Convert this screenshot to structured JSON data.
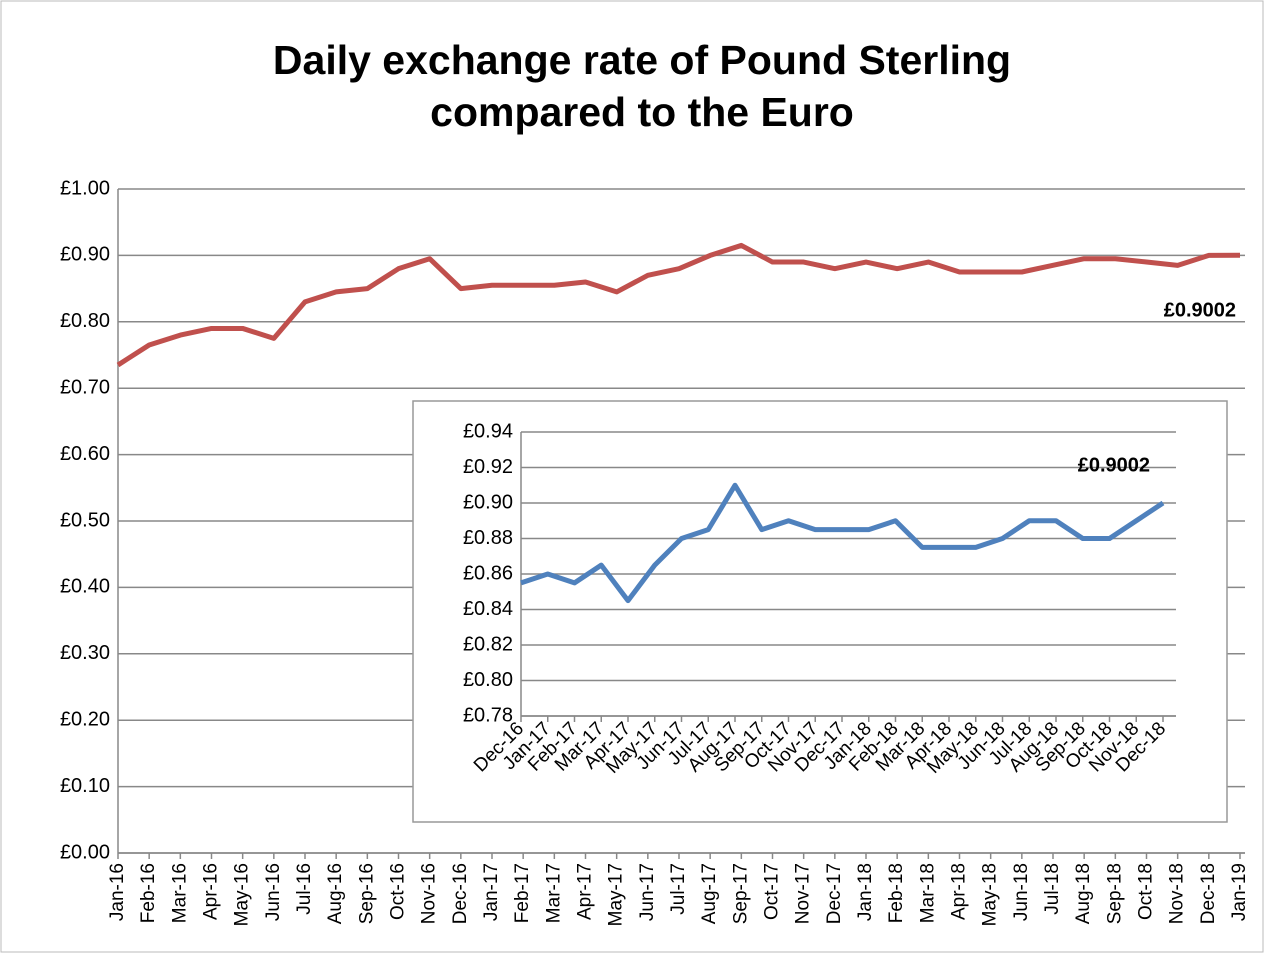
{
  "chart_data": [
    {
      "type": "line",
      "title": "Daily exchange rate of Pound Sterling compared to the Euro",
      "categories": [
        "Jan-16",
        "Feb-16",
        "Mar-16",
        "Apr-16",
        "May-16",
        "Jun-16",
        "Jul-16",
        "Aug-16",
        "Sep-16",
        "Oct-16",
        "Nov-16",
        "Dec-16",
        "Jan-17",
        "Feb-17",
        "Mar-17",
        "Apr-17",
        "May-17",
        "Jun-17",
        "Jul-17",
        "Aug-17",
        "Sep-17",
        "Oct-17",
        "Nov-17",
        "Dec-17",
        "Jan-18",
        "Feb-18",
        "Mar-18",
        "Apr-18",
        "May-18",
        "Jun-18",
        "Jul-18",
        "Aug-18",
        "Sep-18",
        "Oct-18",
        "Nov-18",
        "Dec-18",
        "Jan-19"
      ],
      "series": [
        {
          "color": "#c0504d",
          "values": [
            0.735,
            0.765,
            0.78,
            0.79,
            0.79,
            0.775,
            0.83,
            0.845,
            0.85,
            0.88,
            0.895,
            0.85,
            0.855,
            0.855,
            0.855,
            0.86,
            0.845,
            0.87,
            0.88,
            0.9,
            0.915,
            0.89,
            0.89,
            0.88,
            0.89,
            0.88,
            0.89,
            0.875,
            0.875,
            0.875,
            0.885,
            0.895,
            0.895,
            0.89,
            0.885,
            0.9,
            0.9002
          ]
        }
      ],
      "annotation": "£0.9002",
      "ylim": [
        0,
        1
      ],
      "yticks": [
        {
          "value": 0,
          "label": "£0.00"
        },
        {
          "value": 0.1,
          "label": "£0.10"
        },
        {
          "value": 0.2,
          "label": "£0.20"
        },
        {
          "value": 0.3,
          "label": "£0.30"
        },
        {
          "value": 0.4,
          "label": "£0.40"
        },
        {
          "value": 0.5,
          "label": "£0.50"
        },
        {
          "value": 0.6,
          "label": "£0.60"
        },
        {
          "value": 0.7,
          "label": "£0.70"
        },
        {
          "value": 0.8,
          "label": "£0.80"
        },
        {
          "value": 0.9,
          "label": "£0.90"
        },
        {
          "value": 1,
          "label": "£1.00"
        }
      ],
      "grid": true
    },
    {
      "type": "line",
      "categories": [
        "Dec-16",
        "Jan-17",
        "Feb-17",
        "Mar-17",
        "Apr-17",
        "May-17",
        "Jun-17",
        "Jul-17",
        "Aug-17",
        "Sep-17",
        "Oct-17",
        "Nov-17",
        "Dec-17",
        "Jan-18",
        "Feb-18",
        "Mar-18",
        "Apr-18",
        "May-18",
        "Jun-18",
        "Jul-18",
        "Aug-18",
        "Sep-18",
        "Oct-18",
        "Nov-18",
        "Dec-18"
      ],
      "series": [
        {
          "color": "#4f81bd",
          "values": [
            0.855,
            0.86,
            0.855,
            0.865,
            0.845,
            0.865,
            0.88,
            0.885,
            0.91,
            0.885,
            0.89,
            0.885,
            0.885,
            0.885,
            0.89,
            0.875,
            0.875,
            0.875,
            0.88,
            0.89,
            0.89,
            0.88,
            0.88,
            0.89,
            0.9
          ]
        }
      ],
      "annotation": "£0.9002",
      "ylim": [
        0.78,
        0.94
      ],
      "yticks": [
        {
          "value": 0.78,
          "label": "£0.78"
        },
        {
          "value": 0.8,
          "label": "£0.80"
        },
        {
          "value": 0.82,
          "label": "£0.82"
        },
        {
          "value": 0.84,
          "label": "£0.84"
        },
        {
          "value": 0.86,
          "label": "£0.86"
        },
        {
          "value": 0.88,
          "label": "£0.88"
        },
        {
          "value": 0.9,
          "label": "£0.90"
        },
        {
          "value": 0.92,
          "label": "£0.92"
        },
        {
          "value": 0.94,
          "label": "£0.94"
        }
      ],
      "grid": true
    }
  ]
}
